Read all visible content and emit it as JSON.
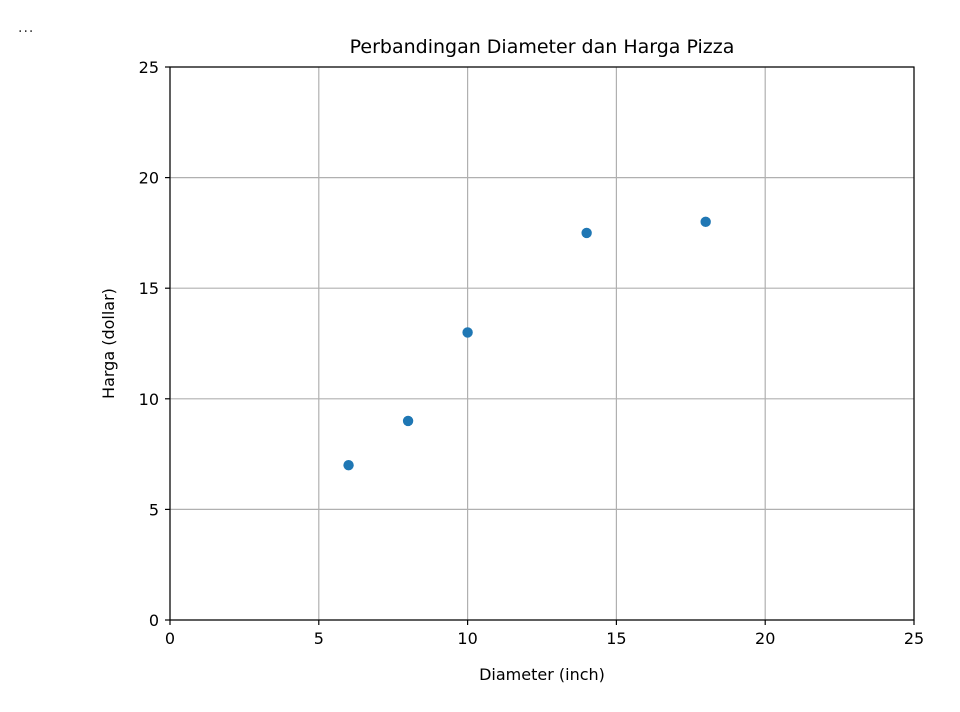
{
  "cell": {
    "marker": "..."
  },
  "chart_data": {
    "type": "scatter",
    "title": "Perbandingan Diameter dan Harga Pizza",
    "xlabel": "Diameter (inch)",
    "ylabel": "Harga (dollar)",
    "xlim": [
      0,
      25
    ],
    "ylim": [
      0,
      25
    ],
    "xticks": [
      0,
      5,
      10,
      15,
      20,
      25
    ],
    "yticks": [
      0,
      5,
      10,
      15,
      20,
      25
    ],
    "grid": true,
    "marker_color": "#1f77b4",
    "points": [
      {
        "x": 6,
        "y": 7
      },
      {
        "x": 8,
        "y": 9
      },
      {
        "x": 10,
        "y": 13
      },
      {
        "x": 14,
        "y": 17.5
      },
      {
        "x": 18,
        "y": 18
      }
    ]
  }
}
